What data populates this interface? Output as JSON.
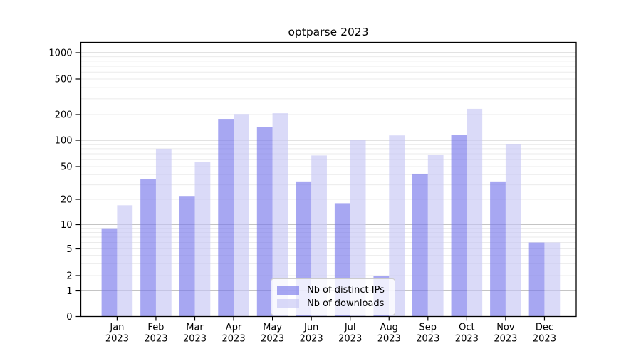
{
  "chart_data": {
    "type": "bar",
    "title": "optparse 2023",
    "categories": [
      "Jan",
      "Feb",
      "Mar",
      "Apr",
      "May",
      "Jun",
      "Jul",
      "Aug",
      "Sep",
      "Oct",
      "Nov",
      "Dec"
    ],
    "category_year": "2023",
    "series": [
      {
        "name": "Nb of distinct IPs",
        "color": "rgba(120,120,235,0.65)",
        "values": [
          9,
          35,
          22,
          178,
          144,
          33,
          18,
          2,
          41,
          116,
          33,
          6
        ]
      },
      {
        "name": "Nb of downloads",
        "color": "rgba(198,198,245,0.65)",
        "values": [
          17,
          80,
          57,
          203,
          207,
          67,
          101,
          114,
          68,
          232,
          91,
          6
        ]
      }
    ],
    "yticks": [
      0,
      1,
      2,
      5,
      10,
      20,
      50,
      100,
      200,
      500,
      1000
    ],
    "ylim": [
      0,
      1000
    ],
    "yscale": "log above 1, linear 0-1",
    "grid": true,
    "legend_position": "bottom-center"
  }
}
